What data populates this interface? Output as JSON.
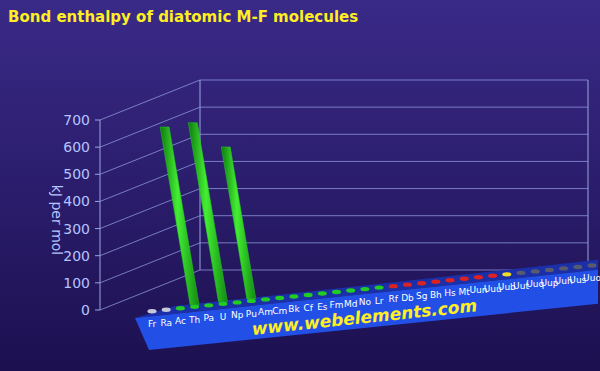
{
  "chart_data": {
    "type": "bar",
    "title": "Bond enthalpy of diatomic M-F molecules",
    "y_label": "kJ per mol",
    "categories": [
      "Fr",
      "Ra",
      "Ac",
      "Th",
      "Pa",
      "U",
      "Np",
      "Pu",
      "Am",
      "Cm",
      "Bk",
      "Cf",
      "Es",
      "Fm",
      "Md",
      "No",
      "Lr",
      "Rf",
      "Db",
      "Sg",
      "Bh",
      "Hs",
      "Mt",
      "Uun",
      "Uuu",
      "Uub",
      "Uut",
      "Uuq",
      "Uup",
      "Uuh",
      "Uus",
      "Uuo"
    ],
    "values": [
      null,
      null,
      null,
      655,
      null,
      660,
      null,
      560,
      null,
      null,
      null,
      null,
      null,
      null,
      null,
      null,
      null,
      null,
      null,
      null,
      null,
      null,
      null,
      null,
      null,
      null,
      null,
      null,
      null,
      null,
      null,
      null
    ],
    "colors": [
      "#c8c8dc",
      "#c8c8dc",
      "#22cc22",
      "#22cc22",
      "#22cc22",
      "#22cc22",
      "#22cc22",
      "#22cc22",
      "#22cc22",
      "#22cc22",
      "#22cc22",
      "#22cc22",
      "#22cc22",
      "#22cc22",
      "#22cc22",
      "#22cc22",
      "#22cc22",
      "#dd2222",
      "#dd2222",
      "#dd2222",
      "#dd2222",
      "#dd2222",
      "#dd2222",
      "#dd2222",
      "#dd2222",
      "#eedd22",
      "#5a5a6e",
      "#5a5a6e",
      "#5a5a6e",
      "#5a5a6e",
      "#5a5a6e",
      "#5a5a6e"
    ],
    "ylim": [
      0,
      700
    ],
    "yticks": [
      0,
      100,
      200,
      300,
      400,
      500,
      600,
      700
    ],
    "grid": true,
    "annotations": [
      "www.webelements.com"
    ]
  }
}
